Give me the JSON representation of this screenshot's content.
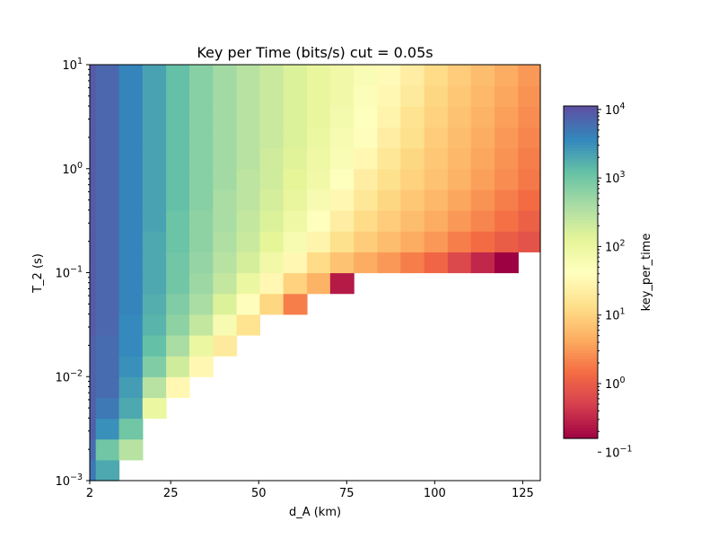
{
  "chart_data": {
    "type": "heatmap",
    "title": "Key per Time (bits/s) cut = 0.05s",
    "xlabel": "d_A (km)",
    "ylabel": "T_2 (s)",
    "x_ticks": [
      {
        "value": 2,
        "label": "2"
      },
      {
        "value": 25,
        "label": "25"
      },
      {
        "value": 50,
        "label": "50"
      },
      {
        "value": 75,
        "label": "75"
      },
      {
        "value": 100,
        "label": "100"
      },
      {
        "value": 125,
        "label": "125"
      }
    ],
    "y_ticks": [
      {
        "value": 0.001,
        "base": "10",
        "exp": "−3"
      },
      {
        "value": 0.01,
        "base": "10",
        "exp": "−2"
      },
      {
        "value": 0.1,
        "base": "10",
        "exp": "−1"
      },
      {
        "value": 1,
        "base": "10",
        "exp": "0"
      },
      {
        "value": 10,
        "base": "10",
        "exp": "1"
      }
    ],
    "xlim": [
      2,
      130
    ],
    "ylim": [
      0.001,
      10
    ],
    "y_scale": "log",
    "x_bin_edges": [
      2,
      3.7,
      10.3,
      17,
      23.7,
      30.3,
      37,
      43.7,
      50.3,
      57,
      63.7,
      70.3,
      77,
      83.7,
      90.3,
      97,
      103.7,
      110.3,
      117,
      123.7,
      130
    ],
    "y_bin_edges_log10": [
      -3,
      -2.8,
      -2.6,
      -2.4,
      -2.2,
      -2,
      -1.8,
      -1.6,
      -1.4,
      -1.2,
      -1,
      -0.8,
      -0.6,
      -0.4,
      -0.2,
      0,
      0.2,
      0.4,
      0.6,
      0.8,
      1
    ],
    "values_log10_bottom_to_top": [
      [
        3.7,
        3.3,
        null,
        null,
        null,
        null,
        null,
        null,
        null,
        null,
        null,
        null,
        null,
        null,
        null,
        null,
        null,
        null,
        null,
        null
      ],
      [
        3.8,
        3.0,
        2.5,
        null,
        null,
        null,
        null,
        null,
        null,
        null,
        null,
        null,
        null,
        null,
        null,
        null,
        null,
        null,
        null,
        null
      ],
      [
        3.9,
        3.5,
        3.0,
        null,
        null,
        null,
        null,
        null,
        null,
        null,
        null,
        null,
        null,
        null,
        null,
        null,
        null,
        null,
        null,
        null
      ],
      [
        3.9,
        3.7,
        3.3,
        2.0,
        null,
        null,
        null,
        null,
        null,
        null,
        null,
        null,
        null,
        null,
        null,
        null,
        null,
        null,
        null,
        null
      ],
      [
        3.9,
        3.8,
        3.4,
        2.5,
        1.5,
        null,
        null,
        null,
        null,
        null,
        null,
        null,
        null,
        null,
        null,
        null,
        null,
        null,
        null,
        null
      ],
      [
        3.9,
        3.8,
        3.5,
        2.9,
        2.3,
        1.5,
        null,
        null,
        null,
        null,
        null,
        null,
        null,
        null,
        null,
        null,
        null,
        null,
        null,
        null
      ],
      [
        3.9,
        3.8,
        3.55,
        3.1,
        2.6,
        2.0,
        1.3,
        null,
        null,
        null,
        null,
        null,
        null,
        null,
        null,
        null,
        null,
        null,
        null,
        null
      ],
      [
        3.95,
        3.85,
        3.55,
        3.2,
        2.8,
        2.4,
        1.8,
        1.2,
        null,
        null,
        null,
        null,
        null,
        null,
        null,
        null,
        null,
        null,
        null,
        null
      ],
      [
        3.95,
        3.85,
        3.6,
        3.25,
        2.9,
        2.6,
        2.2,
        1.6,
        1.05,
        0.3,
        null,
        null,
        null,
        null,
        null,
        null,
        null,
        null,
        null,
        null
      ],
      [
        3.95,
        3.85,
        3.6,
        3.3,
        3.0,
        2.7,
        2.4,
        2.0,
        1.5,
        1.0,
        0.7,
        -0.6,
        null,
        null,
        null,
        null,
        null,
        null,
        null,
        null
      ],
      [
        3.95,
        3.85,
        3.6,
        3.3,
        3.0,
        2.75,
        2.5,
        2.25,
        1.9,
        1.5,
        1.1,
        0.85,
        0.65,
        0.5,
        0.3,
        0.1,
        -0.2,
        -0.5,
        -0.8,
        null
      ],
      [
        3.95,
        3.85,
        3.6,
        3.3,
        3.05,
        2.8,
        2.55,
        2.35,
        2.1,
        1.8,
        1.45,
        1.15,
        0.95,
        0.8,
        0.65,
        0.5,
        0.3,
        0.15,
        0.0,
        -0.1
      ],
      [
        3.95,
        3.85,
        3.6,
        3.35,
        3.05,
        2.8,
        2.6,
        2.4,
        2.2,
        1.95,
        1.65,
        1.35,
        1.1,
        0.95,
        0.8,
        0.65,
        0.5,
        0.35,
        0.2,
        0.05
      ],
      [
        3.95,
        3.85,
        3.6,
        3.35,
        3.1,
        2.85,
        2.6,
        2.45,
        2.25,
        2.05,
        1.8,
        1.5,
        1.25,
        1.05,
        0.9,
        0.75,
        0.6,
        0.45,
        0.3,
        0.15
      ],
      [
        3.95,
        3.85,
        3.6,
        3.35,
        3.1,
        2.85,
        2.65,
        2.45,
        2.3,
        2.1,
        1.9,
        1.65,
        1.35,
        1.15,
        1.0,
        0.85,
        0.7,
        0.55,
        0.4,
        0.25
      ],
      [
        3.95,
        3.85,
        3.6,
        3.35,
        3.1,
        2.85,
        2.65,
        2.5,
        2.3,
        2.15,
        1.95,
        1.75,
        1.5,
        1.25,
        1.05,
        0.9,
        0.75,
        0.6,
        0.45,
        0.3
      ],
      [
        3.95,
        3.85,
        3.6,
        3.35,
        3.1,
        2.85,
        2.65,
        2.5,
        2.35,
        2.2,
        2.0,
        1.8,
        1.6,
        1.35,
        1.15,
        0.95,
        0.8,
        0.65,
        0.5,
        0.35
      ],
      [
        3.95,
        3.85,
        3.6,
        3.35,
        3.1,
        2.85,
        2.65,
        2.5,
        2.35,
        2.2,
        2.05,
        1.85,
        1.65,
        1.45,
        1.2,
        1.0,
        0.85,
        0.7,
        0.55,
        0.4
      ],
      [
        3.95,
        3.85,
        3.6,
        3.35,
        3.1,
        2.85,
        2.65,
        2.5,
        2.35,
        2.2,
        2.05,
        1.9,
        1.7,
        1.5,
        1.3,
        1.05,
        0.9,
        0.75,
        0.6,
        0.45
      ],
      [
        3.95,
        3.85,
        3.6,
        3.35,
        3.1,
        2.85,
        2.65,
        2.5,
        2.35,
        2.2,
        2.05,
        1.9,
        1.75,
        1.55,
        1.35,
        1.1,
        0.95,
        0.8,
        0.65,
        0.5
      ]
    ],
    "colorbar": {
      "label": "key_per_time",
      "scale": "log",
      "colormap": "Spectral",
      "range_log10": [
        -0.8,
        4.05
      ],
      "ticks": [
        {
          "log10": 4,
          "base": "10",
          "exp": "4"
        },
        {
          "log10": 3,
          "base": "10",
          "exp": "3"
        },
        {
          "log10": 2,
          "base": "10",
          "exp": "2"
        },
        {
          "log10": 1,
          "base": "10",
          "exp": "1"
        },
        {
          "log10": 0,
          "base": "10",
          "exp": "0"
        },
        {
          "log10": -1,
          "base": "10",
          "exp": "−1"
        }
      ]
    },
    "grid": false
  }
}
